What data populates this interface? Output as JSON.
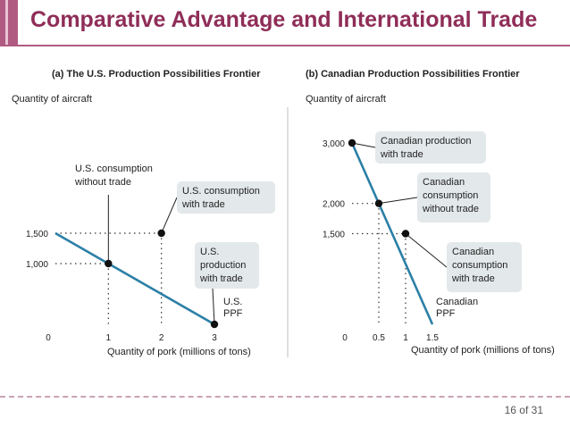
{
  "slide": {
    "title": "Comparative Advantage and International Trade",
    "page": "16 of 31"
  },
  "chart_data": [
    {
      "type": "line",
      "title": "(a) The U.S. Production Possibilities Frontier",
      "xlabel": "Quantity of pork (millions of tons)",
      "ylabel": "Quantity of aircraft",
      "xlim": [
        0,
        3
      ],
      "ylim": [
        0,
        1500
      ],
      "x_ticks": [
        "0",
        "1",
        "2",
        "3"
      ],
      "y_ticks": [
        "1,000",
        "1,500"
      ],
      "series": [
        {
          "name": "U.S. PPF",
          "points": [
            [
              0,
              1500
            ],
            [
              3,
              0
            ]
          ],
          "color": "#2b7fa6"
        }
      ],
      "points": [
        {
          "label": "U.S. consumption without trade",
          "x": 1,
          "y": 1000
        },
        {
          "label": "U.S. consumption with trade",
          "x": 2,
          "y": 1500
        },
        {
          "label": "U.S. production with trade",
          "x": 3,
          "y": 0
        }
      ]
    },
    {
      "type": "line",
      "title": "(b) Canadian Production Possibilities Frontier",
      "xlabel": "Quantity of pork (millions of tons)",
      "ylabel": "Quantity of aircraft",
      "xlim": [
        0,
        1.5
      ],
      "ylim": [
        0,
        3000
      ],
      "x_ticks": [
        "0",
        "0.5",
        "1",
        "1.5"
      ],
      "y_ticks": [
        "1,500",
        "2,000",
        "3,000"
      ],
      "series": [
        {
          "name": "Canadian PPF",
          "points": [
            [
              0,
              3000
            ],
            [
              1.5,
              0
            ]
          ],
          "color": "#2b7fa6"
        }
      ],
      "points": [
        {
          "label": "Canadian production with trade",
          "x": 0,
          "y": 3000
        },
        {
          "label": "Canadian consumption without trade",
          "x": 0.5,
          "y": 2000
        },
        {
          "label": "Canadian consumption with trade",
          "x": 1,
          "y": 1500
        }
      ]
    }
  ],
  "annotations": {
    "us_no_trade": [
      "U.S. consumption",
      "without trade"
    ],
    "us_with_trade": [
      "U.S. consumption",
      "with trade"
    ],
    "us_production": [
      "U.S.",
      "production",
      "with trade"
    ],
    "us_ppf": [
      "U.S.",
      "PPF"
    ],
    "ca_production": [
      "Canadian production",
      "with trade"
    ],
    "ca_no_trade": [
      "Canadian",
      "consumption",
      "without trade"
    ],
    "ca_with_trade": [
      "Canadian",
      "consumption",
      "with trade"
    ],
    "ca_ppf": [
      "Canadian",
      "PPF"
    ]
  }
}
